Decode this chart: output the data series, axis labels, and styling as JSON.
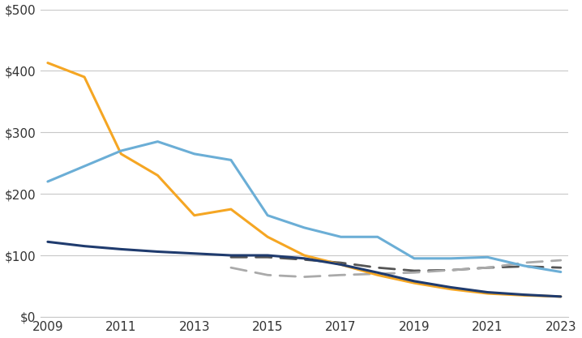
{
  "orange_line": {
    "years": [
      2009,
      2010,
      2011,
      2012,
      2013,
      2014,
      2015,
      2016,
      2017,
      2018,
      2019,
      2020,
      2021,
      2022,
      2023
    ],
    "values": [
      413,
      390,
      265,
      230,
      165,
      175,
      130,
      100,
      85,
      68,
      55,
      45,
      38,
      35,
      33
    ],
    "color": "#F5A623",
    "linewidth": 2.2
  },
  "light_blue_line": {
    "years": [
      2009,
      2010,
      2011,
      2012,
      2013,
      2014,
      2015,
      2016,
      2017,
      2018,
      2019,
      2020,
      2021,
      2022,
      2023
    ],
    "values": [
      220,
      245,
      270,
      285,
      265,
      255,
      165,
      145,
      130,
      130,
      95,
      95,
      97,
      83,
      73
    ],
    "color": "#6BAED6",
    "linewidth": 2.2
  },
  "dark_blue_line": {
    "years": [
      2009,
      2010,
      2011,
      2012,
      2013,
      2014,
      2015,
      2016,
      2017,
      2018,
      2019,
      2020,
      2021,
      2022,
      2023
    ],
    "values": [
      122,
      115,
      110,
      106,
      103,
      100,
      100,
      95,
      85,
      72,
      58,
      48,
      40,
      36,
      33
    ],
    "color": "#1F3B6E",
    "linewidth": 2.2
  },
  "dark_gray_dashed": {
    "years": [
      2014,
      2015,
      2016,
      2017,
      2018,
      2019,
      2020,
      2021,
      2022,
      2023
    ],
    "values": [
      97,
      97,
      93,
      88,
      80,
      75,
      76,
      80,
      82,
      80
    ],
    "color": "#555555",
    "linewidth": 2.0,
    "dashes": [
      7,
      4
    ]
  },
  "light_gray_dashed": {
    "years": [
      2014,
      2015,
      2016,
      2017,
      2018,
      2019,
      2020,
      2021,
      2022,
      2023
    ],
    "values": [
      80,
      68,
      65,
      68,
      70,
      72,
      76,
      80,
      88,
      92
    ],
    "color": "#AAAAAA",
    "linewidth": 2.0,
    "dashes": [
      7,
      4
    ]
  },
  "xlim": [
    2009,
    2023
  ],
  "ylim": [
    0,
    500
  ],
  "yticks": [
    0,
    100,
    200,
    300,
    400,
    500
  ],
  "ytick_labels": [
    "$0",
    "$100",
    "$200",
    "$300",
    "$400",
    "$500"
  ],
  "xticks": [
    2009,
    2011,
    2013,
    2015,
    2017,
    2019,
    2021,
    2023
  ],
  "background_color": "#FFFFFF",
  "grid_color": "#C8C8C8",
  "tick_fontsize": 11
}
